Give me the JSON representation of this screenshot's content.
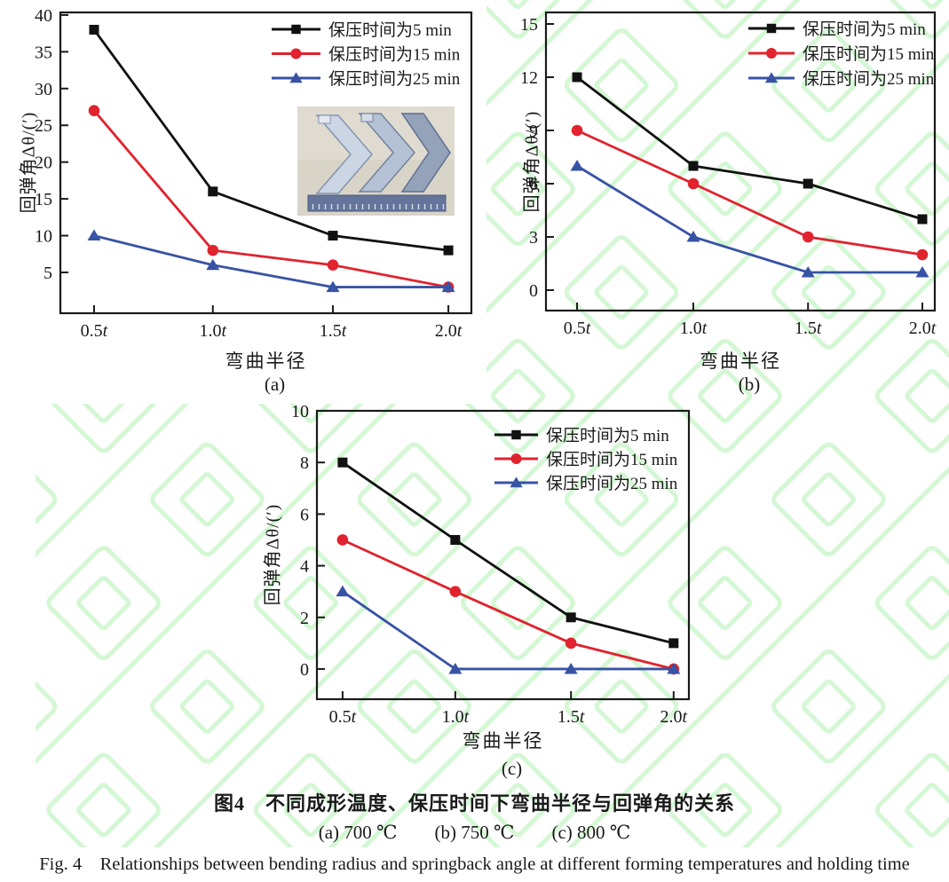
{
  "figure": {
    "caption_zh": "图4　不同成形温度、保压时间下弯曲半径与回弹角的关系",
    "caption_sub": "(a) 700 ℃　　(b) 750 ℃　　(c) 800 ℃",
    "caption_en": "Fig. 4　Relationships between bending radius and springback angle at different forming temperatures and holding time"
  },
  "colors": {
    "series_5min": "#111111",
    "series_15min": "#e0232e",
    "series_25min": "#3753a4",
    "axis": "#1a1a1a",
    "watermark_green": "#d4f7d4",
    "background": "#ffffff"
  },
  "inset_photo": {
    "description": "three L-shaped bent sheet-metal specimens above a ruler",
    "object_count": 3
  },
  "chart_data": [
    {
      "id": "a",
      "type": "line",
      "panel_label": "(a)",
      "temperature": "700 ℃",
      "xlabel": "弯曲半径",
      "ylabel": "回弹角Δθ/(′)",
      "categories": [
        "0.5t",
        "1.0t",
        "1.5t",
        "2.0t"
      ],
      "ylim": [
        0,
        40
      ],
      "yticks": [
        5,
        10,
        15,
        20,
        25,
        30,
        35,
        40
      ],
      "grid": false,
      "legend_position": "top-right",
      "series": [
        {
          "name": "保压时间为5 min",
          "marker": "square",
          "color": "#111111",
          "values": [
            38,
            16,
            10,
            8
          ]
        },
        {
          "name": "保压时间为15 min",
          "marker": "circle",
          "color": "#e0232e",
          "values": [
            27,
            8,
            6,
            3
          ]
        },
        {
          "name": "保压时间为25 min",
          "marker": "triangle",
          "color": "#3753a4",
          "values": [
            10,
            6,
            3,
            3
          ]
        }
      ]
    },
    {
      "id": "b",
      "type": "line",
      "panel_label": "(b)",
      "temperature": "750 ℃",
      "xlabel": "弯曲半径",
      "ylabel": "回弹角Δθ/(′)",
      "categories": [
        "0.5t",
        "1.0t",
        "1.5t",
        "2.0t"
      ],
      "ylim": [
        0,
        15
      ],
      "yticks": [
        0,
        3,
        6,
        9,
        12,
        15
      ],
      "grid": false,
      "legend_position": "top-right",
      "series": [
        {
          "name": "保压时间为5 min",
          "marker": "square",
          "color": "#111111",
          "values": [
            12,
            7,
            6,
            4
          ]
        },
        {
          "name": "保压时间为15 min",
          "marker": "circle",
          "color": "#e0232e",
          "values": [
            9,
            6,
            3,
            2
          ]
        },
        {
          "name": "保压时间为25 min",
          "marker": "triangle",
          "color": "#3753a4",
          "values": [
            7,
            3,
            1,
            1
          ]
        }
      ]
    },
    {
      "id": "c",
      "type": "line",
      "panel_label": "(c)",
      "temperature": "800 ℃",
      "xlabel": "弯曲半径",
      "ylabel": "回弹角Δθ/(′)",
      "categories": [
        "0.5t",
        "1.0t",
        "1.5t",
        "2.0t"
      ],
      "ylim": [
        0,
        10
      ],
      "yticks": [
        0,
        2,
        4,
        6,
        8,
        10
      ],
      "grid": false,
      "legend_position": "top-right",
      "series": [
        {
          "name": "保压时间为5 min",
          "marker": "square",
          "color": "#111111",
          "values": [
            8,
            5,
            2,
            1
          ]
        },
        {
          "name": "保压时间为15 min",
          "marker": "circle",
          "color": "#e0232e",
          "values": [
            5,
            3,
            1,
            0
          ]
        },
        {
          "name": "保压时间为25 min",
          "marker": "triangle",
          "color": "#3753a4",
          "values": [
            3,
            0,
            0,
            0
          ]
        }
      ]
    }
  ]
}
